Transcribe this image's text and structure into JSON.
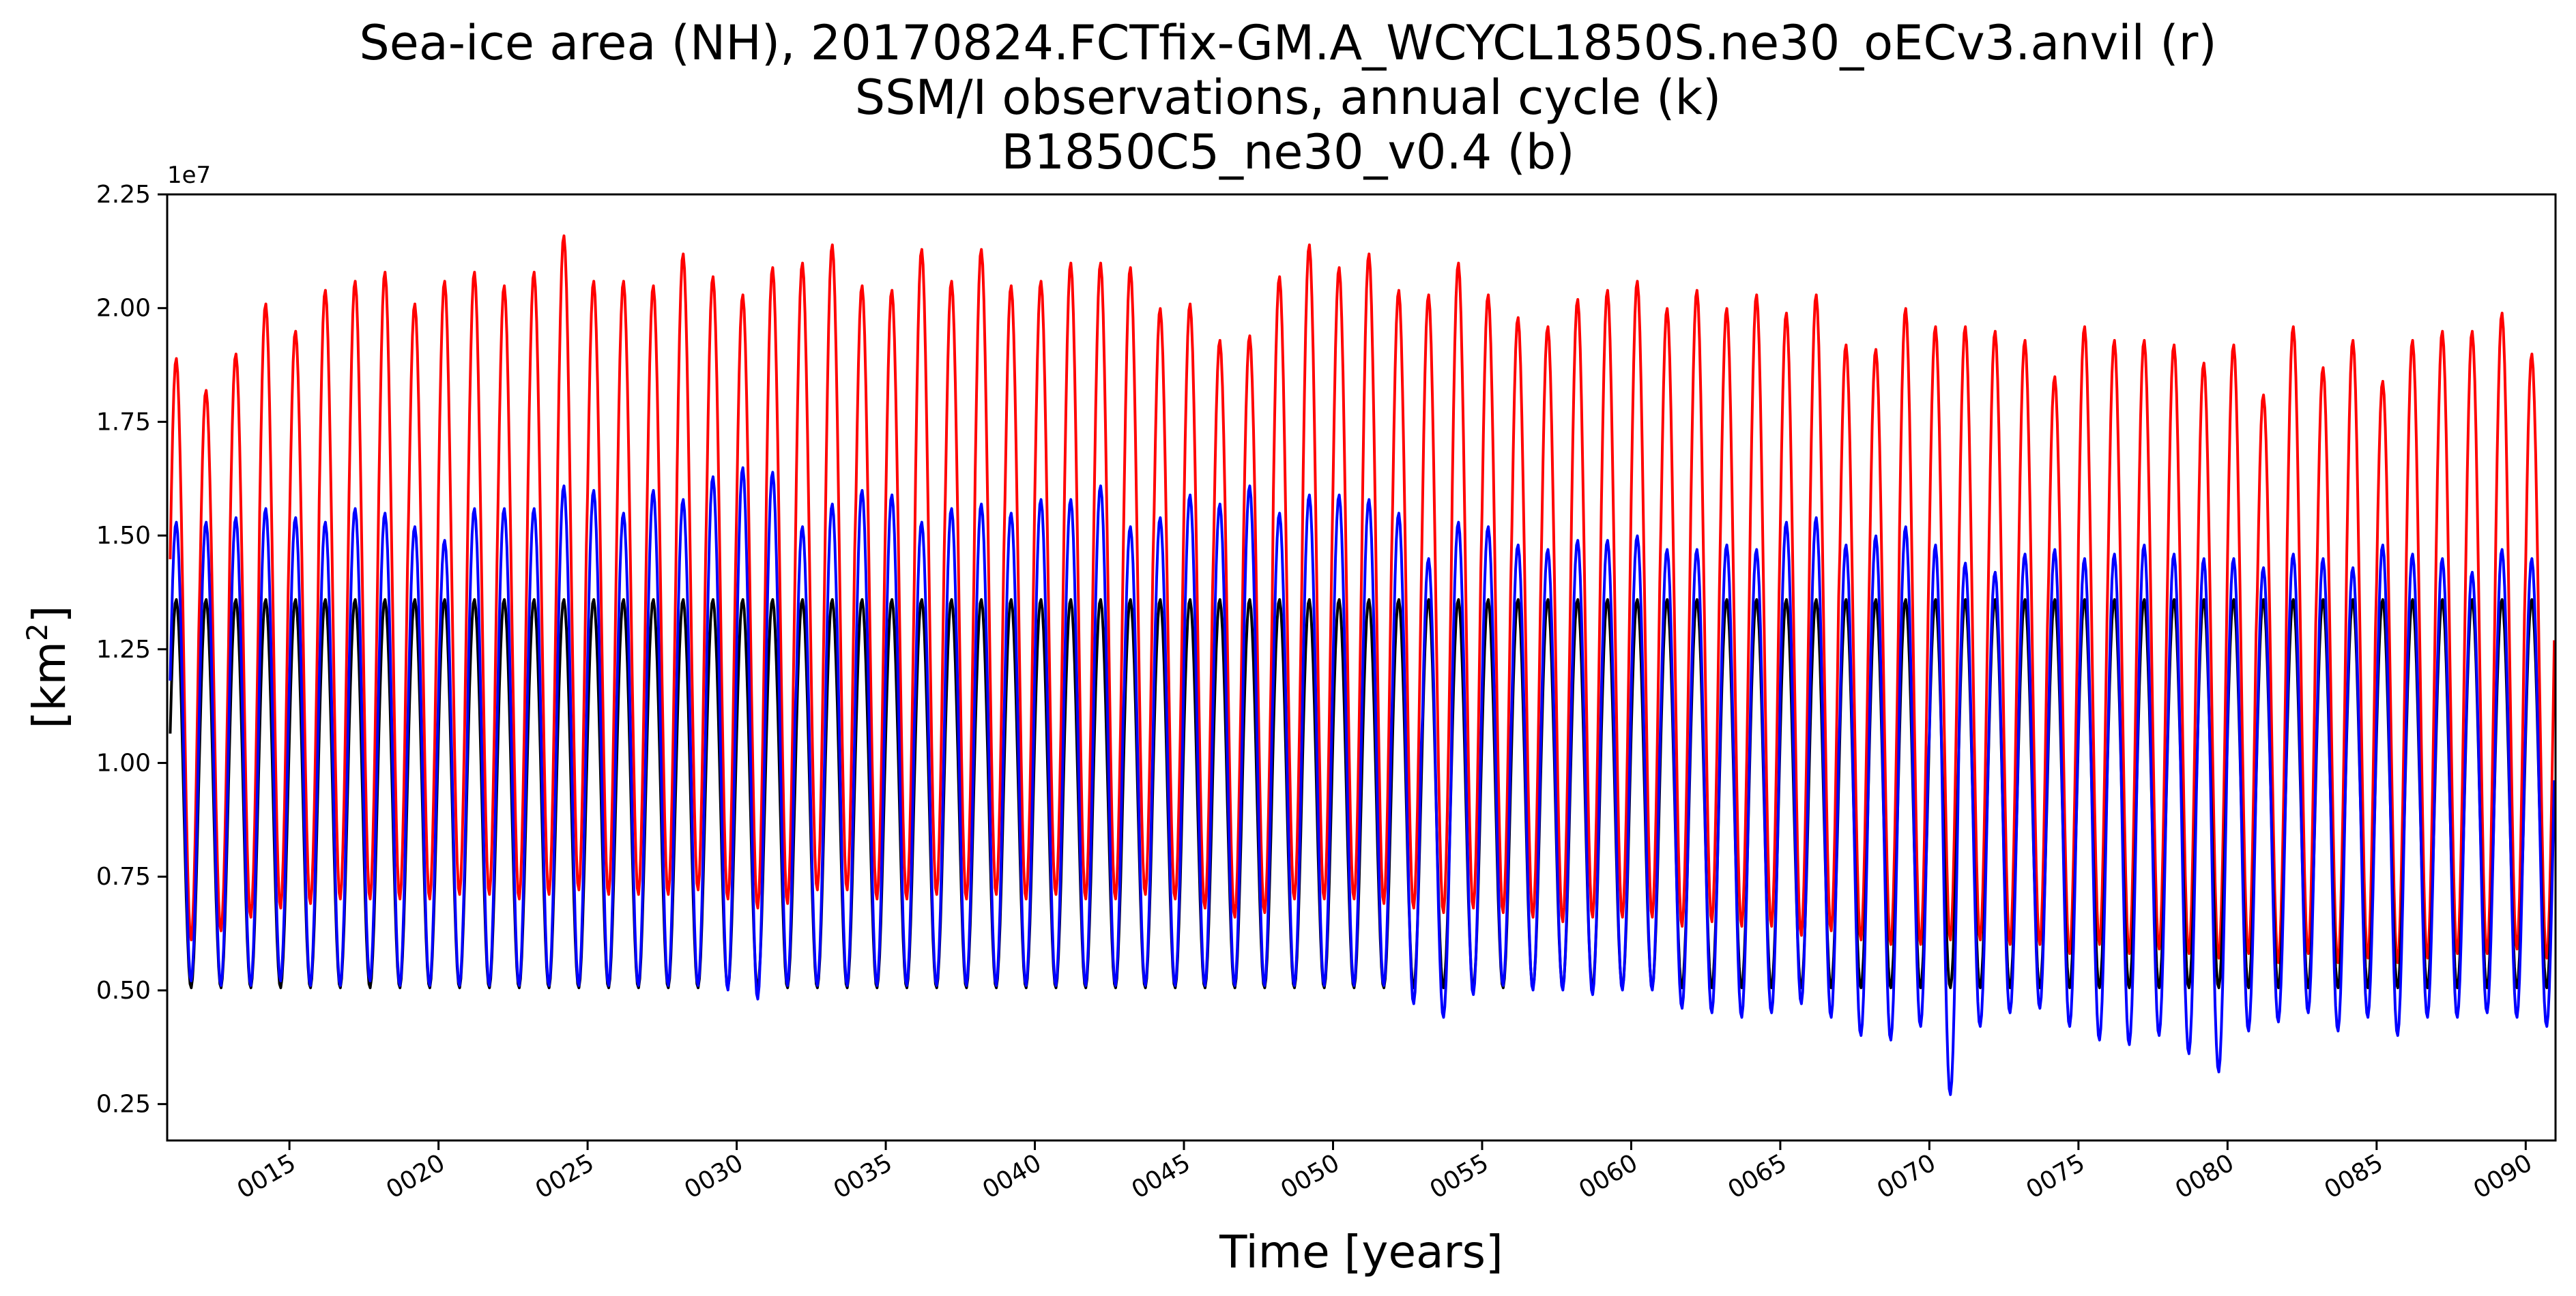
{
  "chart_data": {
    "type": "line",
    "title_lines": [
      "Sea-ice area (NH), 20170824.FCTfix-GM.A_WCYCL1850S.ne30_oECv3.anvil (r)",
      "SSM/I observations, annual cycle (k)",
      "B1850C5_ne30_v0.4 (b)"
    ],
    "xlabel": "Time [years]",
    "ylabel_base": "[km",
    "ylabel_sup": "2",
    "ylabel_end": "]",
    "y_offset_label": "1e7",
    "xlim": [
      10.9,
      91.0
    ],
    "ylim": [
      1700000.0,
      22500000.0
    ],
    "x_ticks": [
      15,
      20,
      25,
      30,
      35,
      40,
      45,
      50,
      55,
      60,
      65,
      70,
      75,
      80,
      85,
      90
    ],
    "x_tick_labels": [
      "0015",
      "0020",
      "0025",
      "0030",
      "0035",
      "0040",
      "0045",
      "0050",
      "0055",
      "0060",
      "0065",
      "0070",
      "0075",
      "0080",
      "0085",
      "0090"
    ],
    "y_ticks": [
      2500000.0,
      5000000.0,
      7500000.0,
      10000000.0,
      12500000.0,
      15000000.0,
      17500000.0,
      20000000.0,
      22500000.0
    ],
    "y_tick_labels": [
      "0.25",
      "0.50",
      "0.75",
      "1.00",
      "1.25",
      "1.50",
      "1.75",
      "2.00",
      "2.25"
    ],
    "grid": false,
    "legend": "none",
    "series": [
      {
        "color": "#ff0000",
        "x_start": 11,
        "x_end": 91,
        "annual_max": [
          18900000.0,
          18200000.0,
          19000000.0,
          20100000.0,
          19500000.0,
          20400000.0,
          20600000.0,
          20800000.0,
          20100000.0,
          20600000.0,
          20800000.0,
          20500000.0,
          20800000.0,
          21600000.0,
          20600000.0,
          20600000.0,
          20500000.0,
          21200000.0,
          20700000.0,
          20300000.0,
          20900000.0,
          21000000.0,
          21400000.0,
          20500000.0,
          20400000.0,
          21300000.0,
          20600000.0,
          21300000.0,
          20500000.0,
          20600000.0,
          21000000.0,
          21000000.0,
          20900000.0,
          20000000.0,
          20100000.0,
          19300000.0,
          19400000.0,
          20700000.0,
          21400000.0,
          20900000.0,
          21200000.0,
          20400000.0,
          20300000.0,
          21000000.0,
          20300000.0,
          19800000.0,
          19600000.0,
          20200000.0,
          20400000.0,
          20600000.0,
          20000000.0,
          20400000.0,
          20000000.0,
          20300000.0,
          19900000.0,
          20300000.0,
          19200000.0,
          19100000.0,
          20000000.0,
          19600000.0,
          19600000.0,
          19500000.0,
          19300000.0,
          18500000.0,
          19600000.0,
          19300000.0,
          19300000.0,
          19200000.0,
          18800000.0,
          19200000.0,
          18100000.0,
          19600000.0,
          18700000.0,
          19300000.0,
          18400000.0,
          19300000.0,
          19500000.0,
          19500000.0,
          19900000.0,
          19000000.0
        ],
        "annual_min": [
          6100000.0,
          6300000.0,
          6600000.0,
          6800000.0,
          6900000.0,
          7000000.0,
          7000000.0,
          7000000.0,
          7000000.0,
          7100000.0,
          7100000.0,
          7000000.0,
          7100000.0,
          7200000.0,
          7100000.0,
          7100000.0,
          7100000.0,
          7200000.0,
          7000000.0,
          6800000.0,
          6900000.0,
          7200000.0,
          7200000.0,
          7000000.0,
          7000000.0,
          7100000.0,
          7000000.0,
          7100000.0,
          7000000.0,
          7100000.0,
          7000000.0,
          7000000.0,
          7100000.0,
          7000000.0,
          6800000.0,
          6600000.0,
          6700000.0,
          7000000.0,
          7000000.0,
          7000000.0,
          6900000.0,
          6800000.0,
          6700000.0,
          6800000.0,
          6700000.0,
          6600000.0,
          6500000.0,
          6600000.0,
          6600000.0,
          6600000.0,
          6400000.0,
          6500000.0,
          6400000.0,
          6400000.0,
          6200000.0,
          6300000.0,
          6100000.0,
          6000000.0,
          6000000.0,
          6100000.0,
          6100000.0,
          6000000.0,
          6000000.0,
          5800000.0,
          6000000.0,
          5800000.0,
          5900000.0,
          5800000.0,
          5700000.0,
          5800000.0,
          5600000.0,
          5800000.0,
          5600000.0,
          5700000.0,
          5600000.0,
          5700000.0,
          5800000.0,
          5800000.0,
          5900000.0,
          5700000.0
        ]
      },
      {
        "color": "#000000",
        "x_start": 11,
        "x_end": 91,
        "annual_max": [
          13600000.0
        ],
        "annual_min": [
          5050000.0
        ]
      },
      {
        "color": "#0000ff",
        "x_start": 11,
        "x_end": 91,
        "annual_max": [
          15300000.0,
          15300000.0,
          15400000.0,
          15600000.0,
          15400000.0,
          15300000.0,
          15600000.0,
          15500000.0,
          15200000.0,
          14900000.0,
          15600000.0,
          15600000.0,
          15600000.0,
          16100000.0,
          16000000.0,
          15500000.0,
          16000000.0,
          15800000.0,
          16300000.0,
          16500000.0,
          16400000.0,
          15200000.0,
          15700000.0,
          16000000.0,
          15900000.0,
          15300000.0,
          15600000.0,
          15700000.0,
          15500000.0,
          15800000.0,
          15800000.0,
          16100000.0,
          15200000.0,
          15400000.0,
          15900000.0,
          15700000.0,
          16100000.0,
          15500000.0,
          15900000.0,
          15900000.0,
          15800000.0,
          15500000.0,
          14500000.0,
          15300000.0,
          15200000.0,
          14800000.0,
          14700000.0,
          14900000.0,
          14900000.0,
          15000000.0,
          14700000.0,
          14700000.0,
          14800000.0,
          14700000.0,
          15300000.0,
          15400000.0,
          14800000.0,
          15000000.0,
          15200000.0,
          14800000.0,
          14400000.0,
          14200000.0,
          14600000.0,
          14700000.0,
          14500000.0,
          14600000.0,
          14800000.0,
          14600000.0,
          14500000.0,
          14500000.0,
          14300000.0,
          14600000.0,
          14500000.0,
          14300000.0,
          14800000.0,
          14600000.0,
          14500000.0,
          14200000.0,
          14700000.0,
          14500000.0
        ],
        "annual_min": [
          5200000.0,
          5100000.0,
          5100000.0,
          5200000.0,
          5100000.0,
          5100000.0,
          5200000.0,
          5100000.0,
          5100000.0,
          5100000.0,
          5100000.0,
          5100000.0,
          5100000.0,
          5100000.0,
          5100000.0,
          5100000.0,
          5100000.0,
          5100000.0,
          5000000.0,
          4800000.0,
          5100000.0,
          5100000.0,
          5100000.0,
          5100000.0,
          5100000.0,
          5100000.0,
          5100000.0,
          5100000.0,
          5100000.0,
          5100000.0,
          5100000.0,
          5100000.0,
          5100000.0,
          5100000.0,
          5100000.0,
          5100000.0,
          5100000.0,
          5100000.0,
          5100000.0,
          5100000.0,
          5100000.0,
          4700000.0,
          4400000.0,
          4900000.0,
          5100000.0,
          5000000.0,
          5000000.0,
          4900000.0,
          5000000.0,
          5000000.0,
          4600000.0,
          4500000.0,
          4400000.0,
          4500000.0,
          4700000.0,
          4400000.0,
          4000000.0,
          3900000.0,
          4200000.0,
          2700000.0,
          4200000.0,
          4500000.0,
          4600000.0,
          4200000.0,
          3900000.0,
          3800000.0,
          4000000.0,
          3600000.0,
          3200000.0,
          4100000.0,
          4300000.0,
          4500000.0,
          4100000.0,
          4400000.0,
          4000000.0,
          4400000.0,
          4400000.0,
          4500000.0,
          4400000.0,
          4200000.0
        ]
      }
    ]
  }
}
